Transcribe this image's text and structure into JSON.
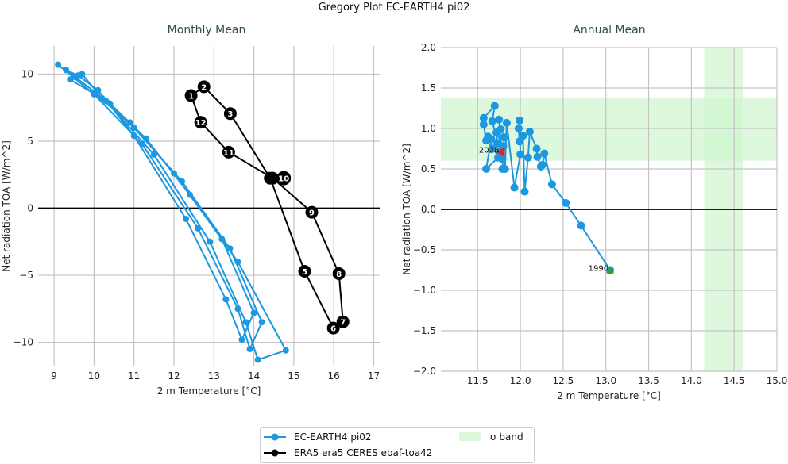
{
  "title": "Gregory Plot EC-EARTH4 pi02",
  "colors": {
    "model": "#1b98e0",
    "obs": "#000000",
    "band": "#ccf5cc",
    "start_marker": "#2ca02c",
    "end_marker": "#d62728",
    "subtitle": "#2f4f4f"
  },
  "legend": {
    "placement": "bottom-center",
    "entries": [
      "EC-EARTH4 pi02",
      "ERA5 era5 CERES ebaf-toa42",
      "σ band"
    ]
  },
  "chart_data": [
    {
      "type": "line",
      "title": "Monthly Mean",
      "xlabel": "2 m Temperature [°C]",
      "ylabel": "Net radiation TOA [W/m^2]",
      "xlim": [
        8.6,
        17.15
      ],
      "ylim": [
        -11.8,
        12.1
      ],
      "xticks": [
        "9",
        "10",
        "11",
        "12",
        "13",
        "14",
        "15",
        "16",
        "17"
      ],
      "yticks": [
        "10",
        "5",
        "0",
        "−5",
        "−10"
      ],
      "xtick_values": [
        9,
        10,
        11,
        12,
        13,
        14,
        15,
        16,
        17
      ],
      "ytick_values": [
        10,
        5,
        0,
        -5,
        -10
      ],
      "grid": true,
      "hline": 0,
      "series": [
        {
          "name": "EC-EARTH4 pi02",
          "marker": "circle",
          "x": [
            9.5,
            9.1,
            10.0,
            11.2,
            12.6,
            13.6,
            13.9,
            14.2,
            13.4,
            12.2,
            11.0,
            10.2,
            9.7,
            9.4,
            10.3,
            11.5,
            12.9,
            13.8,
            14.1,
            14.8,
            13.6,
            12.4,
            11.3,
            10.4,
            9.3,
            9.6,
            10.1,
            11.0,
            12.3,
            13.3,
            13.7,
            14.0,
            13.2,
            12.0,
            10.9,
            10.0
          ],
          "y": [
            9.8,
            10.7,
            8.5,
            4.8,
            -1.5,
            -7.5,
            -10.5,
            -8.5,
            -3.0,
            2.0,
            6.0,
            8.2,
            10.0,
            9.6,
            8.0,
            4.0,
            -2.5,
            -8.5,
            -11.3,
            -10.6,
            -4.0,
            1.0,
            5.2,
            7.8,
            10.3,
            9.9,
            8.8,
            5.4,
            -0.8,
            -6.8,
            -9.8,
            -7.8,
            -2.3,
            2.6,
            6.4,
            8.6
          ]
        },
        {
          "name": "ERA5 era5 CERES ebaf-toa42",
          "marker": "circle-labelled",
          "labels": [
            "1",
            "2",
            "3",
            "4",
            "5",
            "6",
            "7",
            "8",
            "9",
            "10",
            "11",
            "12"
          ],
          "x": [
            12.43,
            12.75,
            13.41,
            14.41,
            15.27,
            15.99,
            16.23,
            16.13,
            15.45,
            14.47,
            13.37,
            12.67
          ],
          "y": [
            8.4,
            9.06,
            7.06,
            2.24,
            -4.7,
            -8.94,
            -8.47,
            -4.88,
            -0.3,
            2.24,
            4.18,
            6.41
          ]
        }
      ]
    },
    {
      "type": "line",
      "title": "Annual Mean",
      "xlabel": "2 m Temperature [°C]",
      "ylabel": "Net radiation TOA [W/m^2]",
      "xlim": [
        11.07,
        15.0
      ],
      "ylim": [
        -2.0,
        2.0
      ],
      "xticks": [
        "11.5",
        "12.0",
        "12.5",
        "13.0",
        "13.5",
        "14.0",
        "14.5",
        "15.0"
      ],
      "yticks": [
        "2.0",
        "1.5",
        "1.0",
        "0.5",
        "0.0",
        "−0.5",
        "−1.0",
        "−1.5",
        "−2.0"
      ],
      "xtick_values": [
        11.5,
        12.0,
        12.5,
        13.0,
        13.5,
        14.0,
        14.5,
        15.0
      ],
      "ytick_values": [
        2.0,
        1.5,
        1.0,
        0.5,
        0.0,
        -0.5,
        -1.0,
        -1.5,
        -2.0
      ],
      "grid": true,
      "hline": 0,
      "sigma_band": {
        "y": [
          0.6,
          1.38
        ],
        "x": [
          14.15,
          14.6
        ]
      },
      "annotations": [
        {
          "text": "1990",
          "x": 13.05,
          "y": -0.75
        },
        {
          "text": "2028",
          "x": 11.77,
          "y": 0.71
        }
      ],
      "series": [
        {
          "name": "EC-EARTH4 pi02",
          "marker": "circle",
          "x": [
            13.05,
            12.71,
            12.53,
            12.37,
            12.28,
            12.26,
            12.24,
            12.2,
            12.19,
            12.11,
            12.09,
            12.05,
            12.03,
            11.99,
            11.98,
            11.99,
            12.0,
            11.93,
            11.84,
            11.82,
            11.79,
            11.81,
            11.77,
            11.75,
            11.79,
            11.67,
            11.7,
            11.57,
            11.57,
            11.6,
            11.66,
            11.6,
            11.74,
            11.62,
            11.68,
            11.73,
            11.72,
            11.8,
            11.77
          ],
          "y": [
            -0.75,
            -0.2,
            0.08,
            0.31,
            0.69,
            0.55,
            0.53,
            0.65,
            0.75,
            0.96,
            0.64,
            0.22,
            0.91,
            0.84,
            1.0,
            1.1,
            0.68,
            0.27,
            1.07,
            0.5,
            0.5,
            0.89,
            0.99,
            1.11,
            0.62,
            1.09,
            1.28,
            1.13,
            1.05,
            0.85,
            0.87,
            0.5,
            0.64,
            0.9,
            0.75,
            0.82,
            0.95,
            0.78,
            0.71
          ]
        }
      ]
    }
  ]
}
